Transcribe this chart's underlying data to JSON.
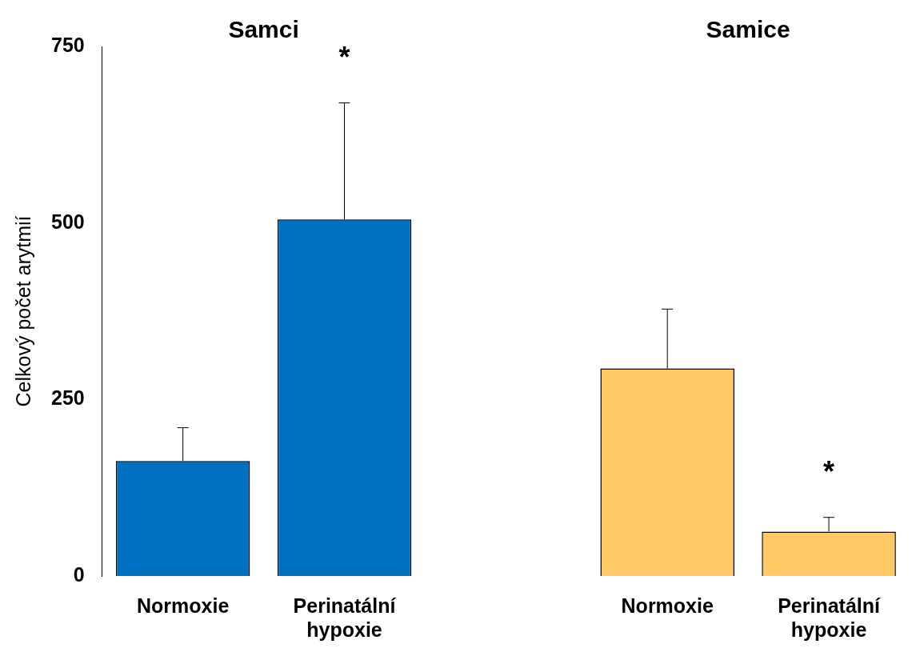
{
  "chart_data": {
    "type": "bar",
    "ylabel": "Celkový počet arytmií",
    "categories": [
      "Normoxie",
      "Perinatální hypoxie",
      null,
      "Normoxie",
      "Perinatální hypoxie"
    ],
    "values": [
      163,
      505,
      null,
      294,
      63
    ],
    "colors": [
      "#0070c0",
      "#0070c0",
      null,
      "#ffc966",
      "#ffc966"
    ],
    "errors": [
      [
        163,
        210
      ],
      [
        505,
        670
      ],
      null,
      [
        294,
        378
      ],
      [
        63,
        83
      ]
    ],
    "ylim": [
      0,
      750
    ],
    "yticks": [
      0,
      250,
      500,
      750
    ],
    "grid": false,
    "legend": false,
    "annotations": [
      "Samci",
      "Samice",
      "*",
      "*"
    ]
  }
}
